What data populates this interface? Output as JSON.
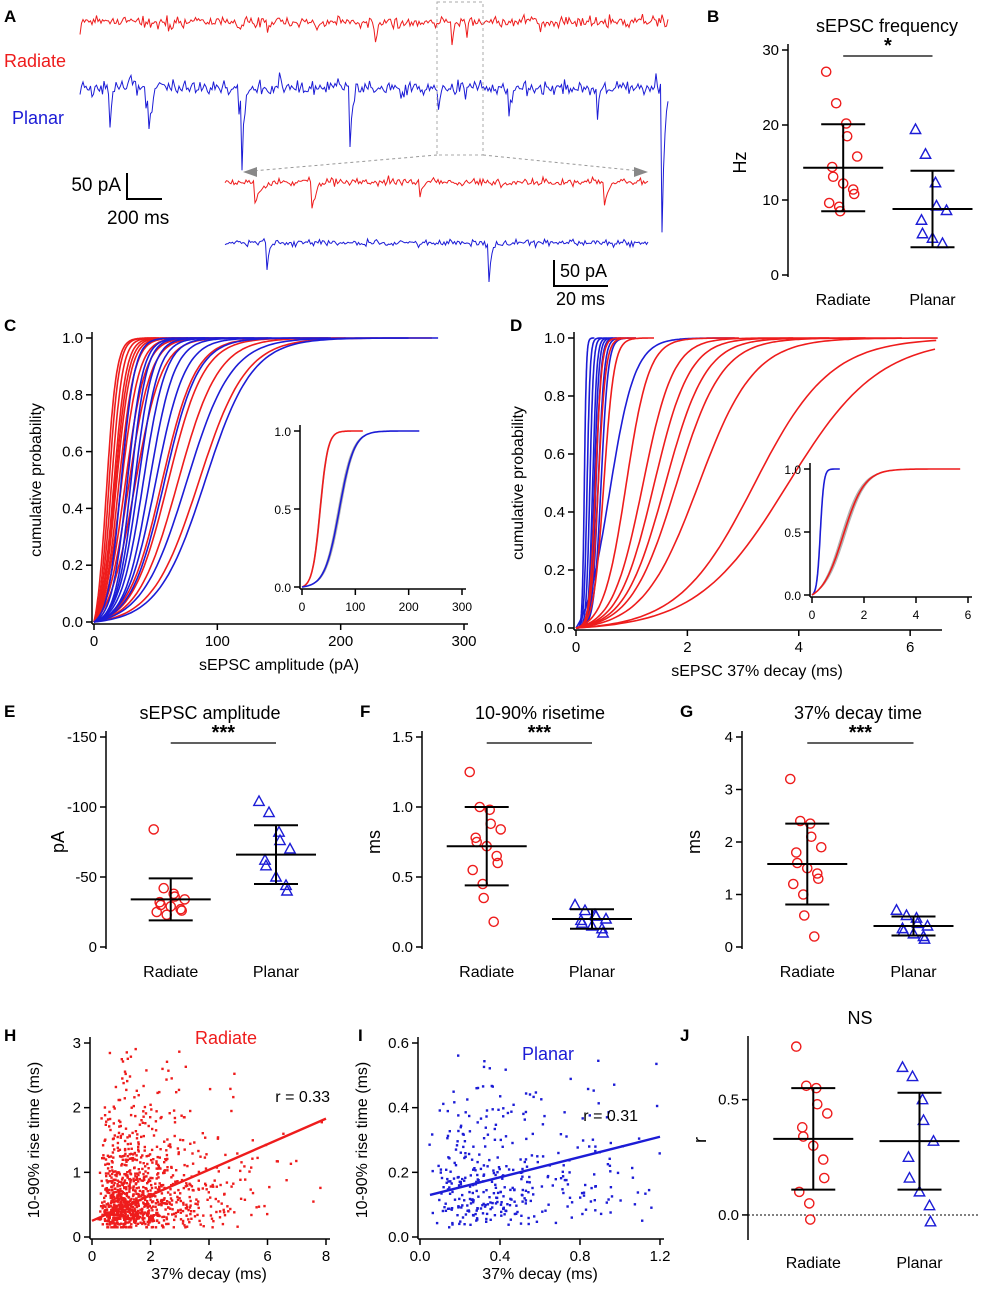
{
  "colors": {
    "radiate": "#ee1c1c",
    "planar": "#1c1cd6",
    "grey": "#aaaaaa",
    "black": "#000000"
  },
  "panel_labels": [
    "A",
    "B",
    "C",
    "D",
    "E",
    "F",
    "G",
    "H",
    "I",
    "J"
  ],
  "trace_panel": {
    "labels": {
      "radiate": "Radiate",
      "planar": "Planar"
    },
    "scale_main": {
      "amp": "50 pA",
      "time": "200 ms"
    },
    "scale_inset": {
      "amp": "50 pA",
      "time": "20 ms"
    }
  },
  "chart_data": [
    {
      "panel": "B",
      "type": "scatter",
      "title": "sEPSC frequency",
      "ylabel": "Hz",
      "categories": [
        "Radiate",
        "Planar"
      ],
      "ylim": [
        0,
        30
      ],
      "yticks": [
        0,
        10,
        20,
        30
      ],
      "significance": "*",
      "series": [
        {
          "name": "Radiate",
          "marker": "circle",
          "mean": 14.3,
          "sd": 5.8,
          "values": [
            27.1,
            22.9,
            20.2,
            18.5,
            15.8,
            14.4,
            13.1,
            12.2,
            11.4,
            10.8,
            9.6,
            9.1,
            8.5
          ]
        },
        {
          "name": "Planar",
          "marker": "triangle",
          "mean": 8.8,
          "sd": 5.1,
          "values": [
            19.4,
            16.1,
            12.3,
            9.2,
            8.6,
            7.3,
            5.5,
            4.9,
            4.2
          ]
        }
      ]
    },
    {
      "panel": "C",
      "type": "line",
      "title": "",
      "xlabel": "sEPSC amplitude (pA)",
      "ylabel": "cumulative probability",
      "xlim": [
        0,
        300
      ],
      "ylim": [
        0,
        1
      ],
      "xticks": [
        0,
        100,
        200,
        300
      ],
      "yticks": [
        0.0,
        0.2,
        0.4,
        0.6,
        0.8,
        1.0
      ],
      "series": [
        {
          "name": "Radiate",
          "curves": [
            [
              10,
              9
            ],
            [
              12,
              9
            ],
            [
              14,
              10
            ],
            [
              16,
              11
            ],
            [
              17,
              12
            ],
            [
              18,
              13
            ],
            [
              20,
              14
            ],
            [
              22,
              16
            ],
            [
              25,
              18
            ],
            [
              28,
              20
            ],
            [
              33,
              24
            ],
            [
              55,
              30
            ],
            [
              60,
              32
            ],
            [
              68,
              36
            ],
            [
              85,
              42
            ]
          ]
        },
        {
          "name": "Planar",
          "curves": [
            [
              22,
              12
            ],
            [
              27,
              14
            ],
            [
              30,
              14
            ],
            [
              33,
              16
            ],
            [
              36,
              18
            ],
            [
              40,
              20
            ],
            [
              45,
              22
            ],
            [
              50,
              26
            ],
            [
              57,
              30
            ],
            [
              75,
              40
            ],
            [
              90,
              42
            ]
          ]
        }
      ],
      "inset": {
        "xlim": [
          0,
          300
        ],
        "ylim": [
          0,
          1
        ],
        "xticks": [
          0,
          100,
          200,
          300
        ],
        "yticks": [
          0.0,
          0.5,
          1.0
        ],
        "series": [
          {
            "name": "Radiate mean",
            "center": 34,
            "width": 16
          },
          {
            "name": "Planar mean",
            "center": 70,
            "width": 30
          }
        ]
      }
    },
    {
      "panel": "D",
      "type": "line",
      "title": "",
      "xlabel": "sEPSC 37% decay (ms)",
      "ylabel": "cumulative probability",
      "xlim": [
        0,
        6.5
      ],
      "ylim": [
        0,
        1
      ],
      "xticks": [
        0,
        2,
        4,
        6
      ],
      "yticks": [
        0.0,
        0.2,
        0.4,
        0.6,
        0.8,
        1.0
      ],
      "series": [
        {
          "name": "Planar",
          "curves": [
            [
              0.15,
              0.04
            ],
            [
              0.2,
              0.06
            ],
            [
              0.25,
              0.07
            ],
            [
              0.3,
              0.08
            ],
            [
              0.33,
              0.09
            ],
            [
              0.36,
              0.1
            ],
            [
              0.4,
              0.12
            ],
            [
              0.45,
              0.14
            ],
            [
              0.6,
              0.5
            ]
          ]
        },
        {
          "name": "Radiate",
          "curves": [
            [
              0.35,
              0.12
            ],
            [
              0.4,
              0.15
            ],
            [
              0.5,
              0.2
            ],
            [
              0.9,
              0.45
            ],
            [
              1.2,
              0.6
            ],
            [
              1.4,
              0.7
            ],
            [
              1.6,
              0.8
            ],
            [
              1.8,
              0.9
            ],
            [
              2.2,
              1.1
            ],
            [
              3.2,
              1.5
            ],
            [
              3.8,
              1.8
            ]
          ]
        }
      ],
      "inset": {
        "xlim": [
          0,
          6
        ],
        "ylim": [
          0,
          1
        ],
        "xticks": [
          0,
          2,
          4,
          6
        ],
        "yticks": [
          0.0,
          0.5,
          1.0
        ],
        "series": [
          {
            "name": "Planar mean",
            "center": 0.32,
            "width": 0.15
          },
          {
            "name": "Radiate mean",
            "center": 1.2,
            "width": 0.9
          }
        ]
      }
    },
    {
      "panel": "E",
      "type": "scatter",
      "title": "sEPSC amplitude",
      "ylabel": "pA",
      "categories": [
        "Radiate",
        "Planar"
      ],
      "ylim": [
        0,
        -150
      ],
      "yticks": [
        0,
        -50,
        -100,
        -150
      ],
      "significance": "***",
      "series": [
        {
          "name": "Radiate",
          "marker": "circle",
          "mean": -34,
          "sd": 15,
          "values": [
            -84,
            -42,
            -38,
            -36,
            -34,
            -32,
            -30,
            -29,
            -27,
            -26,
            -25,
            -23
          ]
        },
        {
          "name": "Planar",
          "marker": "triangle",
          "mean": -66,
          "sd": 21,
          "values": [
            -104,
            -96,
            -82,
            -76,
            -70,
            -62,
            -58,
            -50,
            -44,
            -40
          ]
        }
      ]
    },
    {
      "panel": "F",
      "type": "scatter",
      "title": "10-90% risetime",
      "ylabel": "ms",
      "categories": [
        "Radiate",
        "Planar"
      ],
      "ylim": [
        0,
        1.5
      ],
      "yticks": [
        0.0,
        0.5,
        1.0,
        1.5
      ],
      "significance": "***",
      "series": [
        {
          "name": "Radiate",
          "marker": "circle",
          "mean": 0.72,
          "sd": 0.28,
          "values": [
            1.25,
            1.0,
            0.98,
            0.88,
            0.84,
            0.78,
            0.75,
            0.72,
            0.65,
            0.6,
            0.55,
            0.45,
            0.35,
            0.18
          ]
        },
        {
          "name": "Planar",
          "marker": "triangle",
          "mean": 0.2,
          "sd": 0.07,
          "values": [
            0.3,
            0.26,
            0.23,
            0.22,
            0.2,
            0.19,
            0.17,
            0.15,
            0.13,
            0.1
          ]
        }
      ]
    },
    {
      "panel": "G",
      "type": "scatter",
      "title": "37% decay time",
      "ylabel": "ms",
      "categories": [
        "Radiate",
        "Planar"
      ],
      "ylim": [
        0,
        4
      ],
      "yticks": [
        0,
        1,
        2,
        3,
        4
      ],
      "significance": "***",
      "series": [
        {
          "name": "Radiate",
          "marker": "circle",
          "mean": 1.58,
          "sd": 0.77,
          "values": [
            3.2,
            2.4,
            2.35,
            2.1,
            1.9,
            1.8,
            1.6,
            1.5,
            1.4,
            1.3,
            1.2,
            1.0,
            0.6,
            0.2
          ]
        },
        {
          "name": "Planar",
          "marker": "triangle",
          "mean": 0.4,
          "sd": 0.18,
          "values": [
            0.7,
            0.6,
            0.55,
            0.45,
            0.4,
            0.35,
            0.3,
            0.25,
            0.2,
            0.15
          ]
        }
      ]
    },
    {
      "panel": "H",
      "type": "scatter",
      "title": "Radiate",
      "xlabel": "37% decay (ms)",
      "ylabel": "10-90% rise time (ms)",
      "xlim": [
        0,
        8
      ],
      "ylim": [
        0,
        3
      ],
      "xticks": [
        0,
        2,
        4,
        6,
        8
      ],
      "yticks": [
        0,
        1,
        2,
        3
      ],
      "annotation": "r = 0.33",
      "regression": {
        "x": [
          0,
          8
        ],
        "y": [
          0.25,
          1.83
        ]
      },
      "n_points": 1100,
      "x_mean": 1.5,
      "y_mean": 0.75
    },
    {
      "panel": "I",
      "type": "scatter",
      "title": "Planar",
      "xlabel": "37% decay (ms)",
      "ylabel": "10-90% rise time (ms)",
      "xlim": [
        0,
        1.2
      ],
      "ylim": [
        0,
        0.6
      ],
      "xticks": [
        0.0,
        0.4,
        0.8,
        1.2
      ],
      "yticks": [
        0.0,
        0.2,
        0.4,
        0.6
      ],
      "annotation": "r = 0.31",
      "regression": {
        "x": [
          0.05,
          1.2
        ],
        "y": [
          0.13,
          0.31
        ]
      },
      "n_points": 420,
      "x_mean": 0.38,
      "y_mean": 0.2
    },
    {
      "panel": "J",
      "type": "scatter",
      "title": "NS",
      "ylabel": "r",
      "categories": [
        "Radiate",
        "Planar"
      ],
      "ylim": [
        -0.1,
        0.75
      ],
      "yticks": [
        0.0,
        0.5
      ],
      "zero_line": true,
      "series": [
        {
          "name": "Radiate",
          "marker": "circle",
          "mean": 0.33,
          "sd": 0.22,
          "values": [
            0.73,
            0.56,
            0.55,
            0.48,
            0.44,
            0.38,
            0.34,
            0.3,
            0.24,
            0.16,
            0.1,
            0.05,
            -0.02
          ]
        },
        {
          "name": "Planar",
          "marker": "triangle",
          "mean": 0.32,
          "sd": 0.21,
          "values": [
            0.64,
            0.6,
            0.5,
            0.41,
            0.32,
            0.25,
            0.16,
            0.1,
            0.04,
            -0.03
          ]
        }
      ]
    }
  ]
}
